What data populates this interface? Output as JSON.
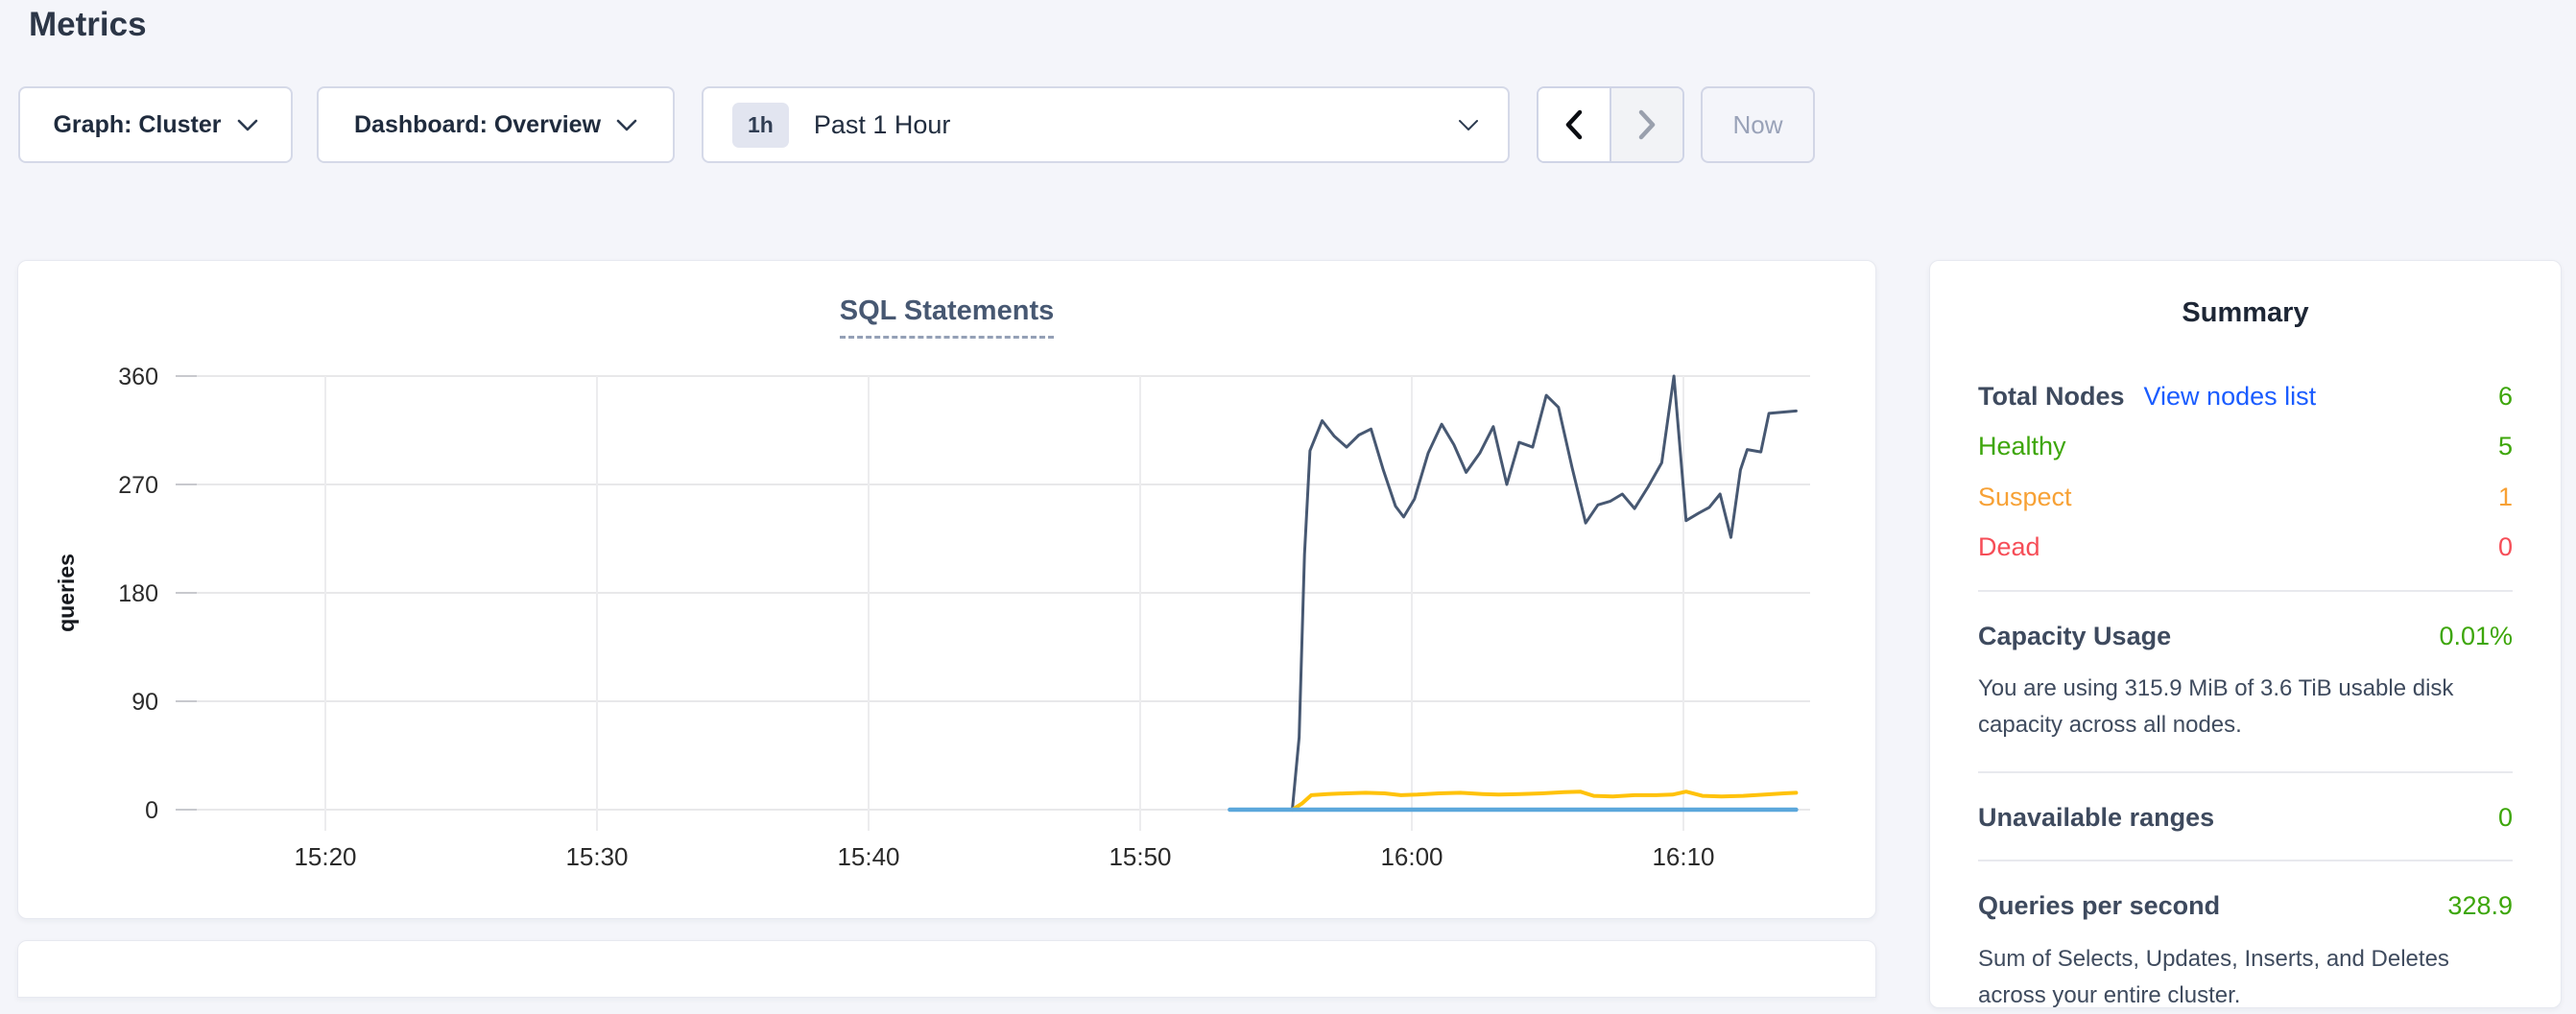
{
  "header": {
    "title": "Metrics"
  },
  "controls": {
    "graph_dropdown": {
      "label": "Graph: Cluster"
    },
    "dashboard_dropdown": {
      "label": "Dashboard: Overview"
    },
    "time_selector": {
      "badge": "1h",
      "label": "Past 1 Hour"
    },
    "now_label": "Now"
  },
  "chart_data": {
    "type": "line",
    "title": "SQL Statements",
    "xlabel": "",
    "ylabel": "queries",
    "ylim": [
      0,
      360
    ],
    "yticks": [
      0,
      90,
      180,
      270,
      360
    ],
    "x_axis_note": "time of day, minutes after 15:00",
    "xlim": [
      14.6,
      74.7
    ],
    "xticks": [
      {
        "t": 20,
        "label": "15:20"
      },
      {
        "t": 30,
        "label": "15:30"
      },
      {
        "t": 40,
        "label": "15:40"
      },
      {
        "t": 50,
        "label": "15:50"
      },
      {
        "t": 60,
        "label": "16:00"
      },
      {
        "t": 70,
        "label": "16:10"
      }
    ],
    "grid": true,
    "legend": "none",
    "series": [
      {
        "name": "navy-line",
        "color": "#475872",
        "width": 3,
        "points": [
          [
            55.6,
            0
          ],
          [
            55.85,
            60
          ],
          [
            56.05,
            212
          ],
          [
            56.25,
            298
          ],
          [
            56.7,
            323
          ],
          [
            57.15,
            310
          ],
          [
            57.6,
            301
          ],
          [
            58.05,
            311
          ],
          [
            58.5,
            316
          ],
          [
            58.95,
            282
          ],
          [
            59.4,
            252
          ],
          [
            59.7,
            243
          ],
          [
            60.1,
            258
          ],
          [
            60.6,
            296
          ],
          [
            61.1,
            320
          ],
          [
            61.55,
            303
          ],
          [
            62.0,
            280
          ],
          [
            62.5,
            296
          ],
          [
            63.0,
            318
          ],
          [
            63.5,
            270
          ],
          [
            63.95,
            305
          ],
          [
            64.45,
            301
          ],
          [
            64.95,
            344
          ],
          [
            65.4,
            334
          ],
          [
            65.9,
            284
          ],
          [
            66.4,
            238
          ],
          [
            66.85,
            253
          ],
          [
            67.3,
            256
          ],
          [
            67.75,
            262
          ],
          [
            68.2,
            250
          ],
          [
            68.7,
            268
          ],
          [
            69.2,
            288
          ],
          [
            69.65,
            360
          ],
          [
            70.1,
            240
          ],
          [
            70.55,
            246
          ],
          [
            70.95,
            251
          ],
          [
            71.35,
            262
          ],
          [
            71.75,
            226
          ],
          [
            72.1,
            282
          ],
          [
            72.35,
            299
          ],
          [
            72.85,
            297
          ],
          [
            73.15,
            329
          ],
          [
            73.6,
            330
          ],
          [
            74.15,
            331
          ]
        ]
      },
      {
        "name": "yellow-line",
        "color": "#ffc20a",
        "width": 4,
        "points": [
          [
            55.6,
            0
          ],
          [
            55.95,
            5
          ],
          [
            56.3,
            12
          ],
          [
            56.9,
            13
          ],
          [
            57.6,
            13.5
          ],
          [
            58.3,
            14
          ],
          [
            59.0,
            13.5
          ],
          [
            59.6,
            12
          ],
          [
            60.2,
            12.5
          ],
          [
            61.0,
            13.5
          ],
          [
            61.8,
            14
          ],
          [
            62.6,
            13
          ],
          [
            63.2,
            12.5
          ],
          [
            64.0,
            13
          ],
          [
            64.8,
            13.5
          ],
          [
            65.6,
            14.5
          ],
          [
            66.2,
            15
          ],
          [
            66.7,
            11.5
          ],
          [
            67.4,
            11
          ],
          [
            68.2,
            12
          ],
          [
            69.0,
            12
          ],
          [
            69.6,
            12.5
          ],
          [
            70.1,
            15
          ],
          [
            70.7,
            11.5
          ],
          [
            71.4,
            11
          ],
          [
            72.2,
            11.5
          ],
          [
            73.0,
            12.5
          ],
          [
            73.7,
            13.5
          ],
          [
            74.15,
            14
          ]
        ]
      },
      {
        "name": "blue-line",
        "color": "#5ba7db",
        "width": 4.5,
        "points": [
          [
            53.3,
            0
          ],
          [
            74.15,
            0
          ]
        ]
      }
    ]
  },
  "summary": {
    "title": "Summary",
    "node_rows": [
      {
        "label": "Total Nodes",
        "link": "View nodes list",
        "value": "6",
        "label_color": "#3e4a5e",
        "label_bold": true,
        "value_color": "#3da60a"
      },
      {
        "label": "Healthy",
        "value": "5",
        "label_color": "#3da60a",
        "value_color": "#3da60a"
      },
      {
        "label": "Suspect",
        "value": "1",
        "label_color": "#f7a135",
        "value_color": "#f7a135"
      },
      {
        "label": "Dead",
        "value": "0",
        "label_color": "#f64d57",
        "value_color": "#f64d57"
      }
    ],
    "sections": {
      "capacity": {
        "label": "Capacity Usage",
        "value": "0.01%",
        "description": "You are using 315.9 MiB of 3.6 TiB usable disk capacity across all nodes."
      },
      "unavailable": {
        "label": "Unavailable ranges",
        "value": "0"
      },
      "qps": {
        "label": "Queries per second",
        "value": "328.9",
        "description": "Sum of Selects, Updates, Inserts, and Deletes across your entire cluster."
      }
    }
  },
  "colors": {
    "green": "#3da60a",
    "orange": "#f7a135",
    "red": "#f64d57",
    "link_blue": "#1a5cff",
    "page_background": "#f4f5fa",
    "grid_line": "#e8e8ea",
    "navy_series": "#475872",
    "yellow_series": "#ffc20a",
    "blue_series": "#5ba7db"
  }
}
